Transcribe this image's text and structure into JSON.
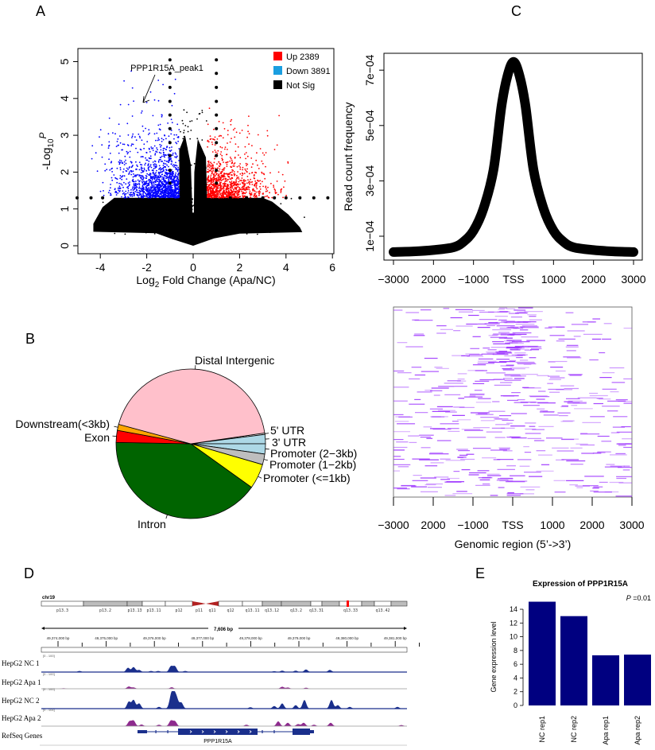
{
  "panel_letters": {
    "a": "A",
    "b": "B",
    "c": "C",
    "d": "D",
    "e": "E"
  },
  "colors": {
    "up": "#ff0000",
    "down": "#0000ff",
    "down_legend": "#1a9ee0",
    "not_sig": "#000000",
    "heatmap": "#9b30ff",
    "track_nc": "#1a2f8c",
    "track_apa": "#8e2a8e",
    "bar": "#000080"
  },
  "chart_data": [
    {
      "id": "A",
      "type": "scatter",
      "xlabel_parts": [
        "Log",
        "2",
        " Fold Change (Apa/NC)"
      ],
      "ylabel_parts": [
        "-Log",
        "10",
        "P"
      ],
      "xlim": [
        -5,
        6
      ],
      "ylim": [
        -0.2,
        5.35
      ],
      "xticks": [
        "-4",
        "-2",
        "0",
        "2",
        "4",
        "6"
      ],
      "xtick_values": [
        -4,
        -2,
        0,
        2,
        4,
        6
      ],
      "yticks": [
        "0",
        "1",
        "2",
        "3",
        "4",
        "5"
      ],
      "ytick_values": [
        0,
        1,
        2,
        3,
        4,
        5
      ],
      "legend_position": "top-right",
      "series": [
        {
          "name": "Up 2389",
          "count": 2389,
          "color": "#ff0000"
        },
        {
          "name": "Down 3891",
          "count": 3891,
          "color": "#1a9ee0"
        },
        {
          "name": "Not Sig",
          "color": "#000000"
        }
      ],
      "thresholds": {
        "log2fc": 0.6,
        "neg_log10_p": 1.3
      },
      "annotation": {
        "text": "PPP1R15A_peak1",
        "x": -2.2,
        "y": 3.9
      }
    },
    {
      "id": "B",
      "type": "pie",
      "slices": [
        {
          "label": "5' UTR",
          "value": 0.3,
          "color": "#f2f2f2"
        },
        {
          "label": "3' UTR",
          "value": 2.0,
          "color": "#add8e6"
        },
        {
          "label": "Promoter (2−3kb)",
          "value": 2.2,
          "color": "#add8e6"
        },
        {
          "label": "Promoter (1−2kb)",
          "value": 2.3,
          "color": "#bebebe"
        },
        {
          "label": "Promoter (<=1kb)",
          "value": 5.4,
          "color": "#ffff00"
        },
        {
          "label": "Intron",
          "value": 40.4,
          "color": "#006400"
        },
        {
          "label": "Exon",
          "value": 2.6,
          "color": "#ff0000"
        },
        {
          "label": "Downstream(<3kb)",
          "value": 1.3,
          "color": "#ffa500"
        },
        {
          "label": "Distal Intergenic",
          "value": 43.5,
          "color": "#ffc0cb"
        }
      ]
    },
    {
      "id": "C",
      "type": "line",
      "ylabel": "Read count frequency",
      "xticks": [
        "−3000",
        "2000",
        "−1000",
        "TSS",
        "1000",
        "2000",
        "3000"
      ],
      "xtick_values": [
        -3000,
        -2000,
        -1000,
        0,
        1000,
        2000,
        3000
      ],
      "yticks": [
        "1e−04",
        "3e−04",
        "5e−04",
        "7e−04"
      ],
      "ytick_values": [
        0.0001,
        0.0003,
        0.0005,
        0.0007
      ],
      "xlim": [
        -3000,
        3000
      ],
      "x": [
        -3000,
        -2500,
        -2000,
        -1500,
        -1250,
        -1000,
        -750,
        -500,
        -300,
        -150,
        0,
        150,
        300,
        500,
        750,
        1000,
        1250,
        1500,
        2000,
        2500,
        3000
      ],
      "y": [
        4.3e-05,
        4.5e-05,
        5e-05,
        6e-05,
        8e-05,
        0.00012,
        0.0002,
        0.00034,
        0.00057,
        0.00068,
        0.00073,
        0.00068,
        0.00057,
        0.00034,
        0.0002,
        0.00012,
        8e-05,
        6e-05,
        5e-05,
        4.5e-05,
        4.3e-05
      ]
    },
    {
      "id": "C-heatmap",
      "type": "heatmap",
      "xlabel": "Genomic region (5’->3’)",
      "xticks": [
        "−3000",
        "2000",
        "−1000",
        "TSS",
        "1000",
        "2000",
        "3000"
      ],
      "xtick_values": [
        -3000,
        -2000,
        -1000,
        0,
        1000,
        2000,
        3000
      ],
      "xlim": [
        -3000,
        3000
      ]
    },
    {
      "id": "D",
      "type": "genome-tracks",
      "chromosome": "chr19",
      "bands": [
        {
          "name": "p13.3",
          "stain": "white"
        },
        {
          "name": "p13.2",
          "stain": "gray"
        },
        {
          "name": "p13.13",
          "stain": "gray"
        },
        {
          "name": "p13.11",
          "stain": "white"
        },
        {
          "name": "p12",
          "stain": "white"
        },
        {
          "name": "p11",
          "stain": "centromere"
        },
        {
          "name": "q11",
          "stain": "centromere"
        },
        {
          "name": "q12",
          "stain": "white"
        },
        {
          "name": "q13.11",
          "stain": "white"
        },
        {
          "name": "q13.12",
          "stain": "gray"
        },
        {
          "name": "q13.2",
          "stain": "gray"
        },
        {
          "name": "q13.31",
          "stain": "white"
        },
        {
          "name": "",
          "stain": "gray"
        },
        {
          "name": "q13.33",
          "stain": "white"
        },
        {
          "name": "",
          "stain": "gray"
        },
        {
          "name": "q13.42",
          "stain": "white"
        },
        {
          "name": "",
          "stain": "gray"
        }
      ],
      "span_label": "7,606 bp",
      "ruler_labels": [
        "49,374,000 bp",
        "49,375,000 bp",
        "49,376,000 bp",
        "49,377,000 bp",
        "49,378,000 bp",
        "49,379,000 bp",
        "49,380,000 bp",
        "49,381,000 bp"
      ],
      "ruler_values": [
        49374000,
        49375000,
        49376000,
        49377000,
        49378000,
        49379000,
        49380000,
        49381000
      ],
      "tracks": [
        {
          "name": "HepG2 NC 1",
          "range": "[0 - 100]",
          "max": 100,
          "color": "#1a2f8c",
          "peaks": [
            [
              49374446,
              8
            ],
            [
              49375452,
              30
            ],
            [
              49375568,
              35
            ],
            [
              49375683,
              15
            ],
            [
              49375931,
              8
            ],
            [
              49376079,
              8
            ],
            [
              49376343,
              40
            ],
            [
              49376426,
              40
            ],
            [
              49376640,
              8
            ],
            [
              49378488,
              6
            ],
            [
              49378653,
              10
            ],
            [
              49378934,
              10
            ],
            [
              49379148,
              18
            ],
            [
              49379643,
              15
            ]
          ]
        },
        {
          "name": "HepG2 Apa 1",
          "range": "[0 - 100]",
          "max": 100,
          "color": "#8e2a8e",
          "peaks": [
            [
              49374116,
              4
            ],
            [
              49375469,
              18
            ],
            [
              49375568,
              10
            ],
            [
              49376360,
              12
            ],
            [
              49378653,
              16
            ],
            [
              49378769,
              10
            ],
            [
              49379148,
              8
            ]
          ]
        },
        {
          "name": "HepG2 NC 2",
          "range": "[0 - 100]",
          "max": 100,
          "color": "#1a2f8c",
          "peaks": [
            [
              49375469,
              40
            ],
            [
              49375568,
              50
            ],
            [
              49375683,
              30
            ],
            [
              49376096,
              10
            ],
            [
              49376343,
              55
            ],
            [
              49376393,
              80
            ],
            [
              49376459,
              60
            ],
            [
              49376558,
              35
            ],
            [
              49377993,
              8
            ],
            [
              49378488,
              15
            ],
            [
              49378653,
              30
            ],
            [
              49378934,
              20
            ],
            [
              49379115,
              50
            ],
            [
              49379676,
              50
            ],
            [
              49379808,
              20
            ],
            [
              49380056,
              10
            ],
            [
              49381046,
              10
            ]
          ]
        },
        {
          "name": "HepG2 Apa 2",
          "range": "[0 - 104]",
          "max": 104,
          "color": "#8e2a8e",
          "peaks": [
            [
              49375485,
              35
            ],
            [
              49375568,
              40
            ],
            [
              49375733,
              12
            ],
            [
              49376096,
              10
            ],
            [
              49376343,
              40
            ],
            [
              49376426,
              35
            ],
            [
              49377911,
              10
            ],
            [
              49378571,
              35
            ],
            [
              49378769,
              25
            ],
            [
              49378983,
              15
            ],
            [
              49379099,
              25
            ],
            [
              49379313,
              10
            ],
            [
              49379660,
              25
            ],
            [
              49381128,
              8
            ]
          ]
        }
      ],
      "gene_track": {
        "name": "RefSeq Genes",
        "gene": "PPP1R15A",
        "start": 49375650,
        "end": 49379313,
        "exons": [
          [
            49375650,
            49375848,
            "utr"
          ],
          [
            49376492,
            49378142,
            "cds"
          ],
          [
            49378868,
            49379231,
            "cds"
          ],
          [
            49379231,
            49379313,
            "utr"
          ]
        ],
        "small_exons": [
          49376031,
          49376278,
          49378241,
          49378488
        ]
      }
    },
    {
      "id": "E",
      "type": "bar",
      "title": "Expression of PPP1R15A",
      "ylabel": "Gene expression level",
      "annotation": {
        "p_label": "P",
        "p_value": " =0.01"
      },
      "categories": [
        "NC rep1",
        "NC rep2",
        "Apa rep1",
        "Apa rep2"
      ],
      "values": [
        15.1,
        13.0,
        7.3,
        7.4
      ],
      "ylim": [
        0,
        15.5
      ],
      "yticks": [
        "0",
        "2",
        "4",
        "6",
        "8",
        "10",
        "12",
        "14"
      ],
      "ytick_values": [
        0,
        2,
        4,
        6,
        8,
        10,
        12,
        14
      ]
    }
  ]
}
